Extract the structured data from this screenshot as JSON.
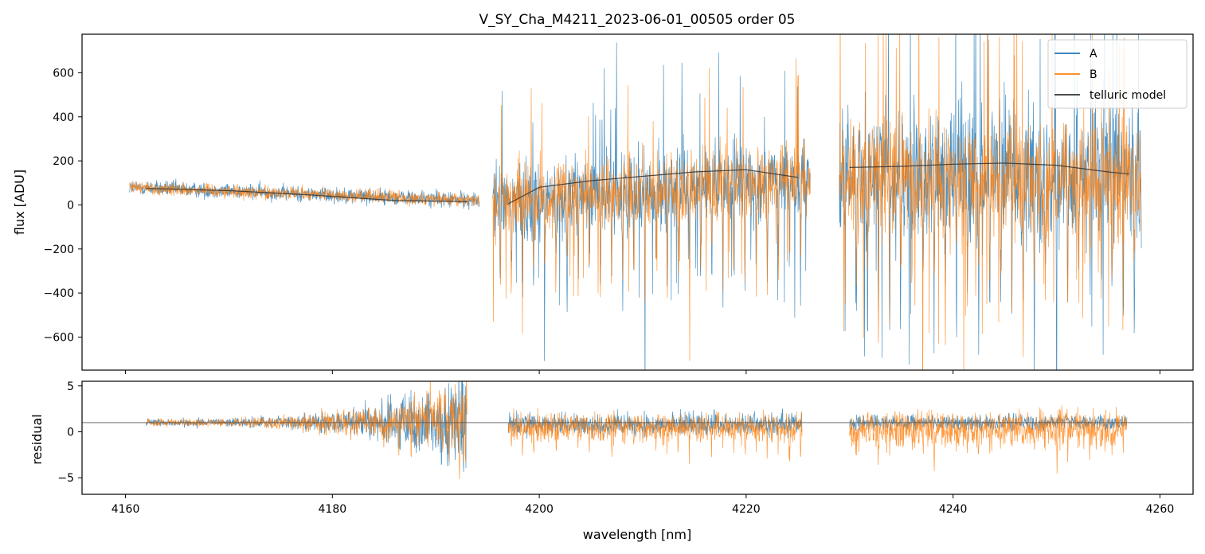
{
  "chart_data": [
    {
      "type": "line",
      "panel": "top",
      "title": "V_SY_Cha_M4211_2023-06-01_00505  order 05",
      "xlabel": "",
      "ylabel": "flux [ADU]",
      "xlim": [
        4155.8,
        4263.2
      ],
      "ylim": [
        -750,
        775
      ],
      "yticks": [
        -600,
        -400,
        -200,
        0,
        200,
        400,
        600
      ],
      "yticklabels": [
        "−600",
        "−400",
        "−200",
        "0",
        "200",
        "400",
        "600"
      ],
      "xticks": [
        4160,
        4180,
        4200,
        4220,
        4240,
        4260
      ],
      "legend": {
        "location": "top-right",
        "entries": [
          {
            "label": "A",
            "color": "#1f77b4"
          },
          {
            "label": "B",
            "color": "#ff7f0e"
          },
          {
            "label": "telluric model",
            "color": "#333333"
          }
        ]
      },
      "series": [
        {
          "name": "A",
          "color": "#1f77b4",
          "segments": [
            {
              "x_range": [
                4160.4,
                4194.2
              ],
              "baseline": [
                80,
                20
              ],
              "noise": 35,
              "absorption_depth": 0
            },
            {
              "x_range": [
                4195.5,
                4226.2
              ],
              "baseline": [
                20,
                120
              ],
              "noise": 180,
              "absorption_depth": 500
            },
            {
              "x_range": [
                4229.0,
                4258.2
              ],
              "baseline": [
                130,
                130
              ],
              "noise": 300,
              "absorption_depth": 650
            }
          ]
        },
        {
          "name": "B",
          "color": "#ff7f0e",
          "segments": [
            {
              "x_range": [
                4160.4,
                4194.2
              ],
              "baseline": [
                80,
                20
              ],
              "noise": 30,
              "absorption_depth": 0
            },
            {
              "x_range": [
                4195.5,
                4226.2
              ],
              "baseline": [
                20,
                120
              ],
              "noise": 160,
              "absorption_depth": 480
            },
            {
              "x_range": [
                4229.0,
                4258.2
              ],
              "baseline": [
                130,
                130
              ],
              "noise": 260,
              "absorption_depth": 600
            }
          ]
        },
        {
          "name": "telluric model",
          "color": "#333333",
          "segments": [
            {
              "x": [
                4162,
                4170,
                4178,
                4186,
                4193
              ],
              "y": [
                75,
                65,
                45,
                20,
                15
              ]
            },
            {
              "x": [
                4197,
                4200,
                4205,
                4210,
                4215,
                4220,
                4225
              ],
              "y": [
                5,
                80,
                110,
                130,
                150,
                160,
                125
              ]
            },
            {
              "x": [
                4230,
                4235,
                4240,
                4245,
                4250,
                4255,
                4257
              ],
              "y": [
                170,
                175,
                185,
                190,
                180,
                150,
                140
              ]
            }
          ]
        }
      ]
    },
    {
      "type": "line",
      "panel": "bottom",
      "xlabel": "wavelength [nm]",
      "ylabel": "residual",
      "xlim": [
        4155.8,
        4263.2
      ],
      "ylim": [
        -6.8,
        5.5
      ],
      "yticks": [
        -5,
        0,
        5
      ],
      "yticklabels": [
        "−5",
        "0",
        "5"
      ],
      "xticks": [
        4160,
        4180,
        4200,
        4220,
        4240,
        4260
      ],
      "xticklabels": [
        "4160",
        "4180",
        "4200",
        "4220",
        "4240",
        "4260"
      ],
      "reference_line": 1.0,
      "series": [
        {
          "name": "A",
          "color": "#1f77b4",
          "segments": [
            {
              "x_range": [
                4162.0,
                4193.0
              ],
              "center": 1.0,
              "noise_start": 0.4,
              "noise_end": 5.0
            },
            {
              "x_range": [
                4197.0,
                4225.4
              ],
              "center": 0.8,
              "noise_start": 1.2,
              "noise_end": 1.2
            },
            {
              "x_range": [
                4230.0,
                4256.8
              ],
              "center": 1.0,
              "noise_start": 0.8,
              "noise_end": 0.8
            }
          ]
        },
        {
          "name": "B",
          "color": "#ff7f0e",
          "segments": [
            {
              "x_range": [
                4162.0,
                4193.0
              ],
              "center": 1.0,
              "noise_start": 0.4,
              "noise_end": 5.0
            },
            {
              "x_range": [
                4197.0,
                4225.4
              ],
              "center": 0.5,
              "noise_start": 1.5,
              "noise_end": 1.5
            },
            {
              "x_range": [
                4230.0,
                4256.8
              ],
              "center": 0.3,
              "noise_start": 2.0,
              "noise_end": 2.0
            }
          ]
        }
      ]
    }
  ]
}
